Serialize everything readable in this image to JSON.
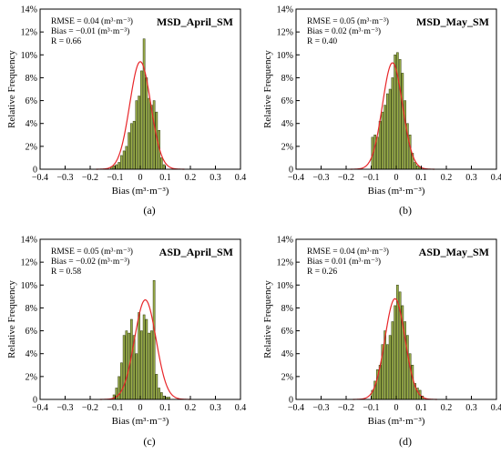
{
  "figure": {
    "style": {
      "bar_fill": "#9aae4a",
      "bar_stroke": "#2f3a0c",
      "curve_color": "#e8262a",
      "axis_color": "#000000"
    }
  },
  "chart_data": [
    {
      "id": "a",
      "type": "bar",
      "title": "MSD_April_SM",
      "caption": "(a)",
      "xlabel": "Bias (m³·m⁻³)",
      "ylabel": "Relative Frequency",
      "xlim": [
        -0.4,
        0.4
      ],
      "ylim": [
        0,
        14
      ],
      "x_ticks": [
        "−0.4",
        "−0.3",
        "−0.2",
        "−0.1",
        "0",
        "0.1",
        "0.2",
        "0.3",
        "0.4"
      ],
      "y_ticks": [
        "0",
        "2%",
        "4%",
        "6%",
        "8%",
        "10%",
        "12%",
        "14%"
      ],
      "grid": false,
      "annotations": [
        "RMSE = 0.04 (m³·m⁻³)",
        "Bias = −0.01 (m³·m⁻³)",
        "R = 0.66"
      ],
      "bins": [
        -0.12,
        -0.11,
        -0.1,
        -0.09,
        -0.08,
        -0.07,
        -0.06,
        -0.05,
        -0.04,
        -0.03,
        -0.02,
        -0.01,
        0.0,
        0.01,
        0.02,
        0.03,
        0.04,
        0.05,
        0.06,
        0.07,
        0.08,
        0.09
      ],
      "values": [
        0.2,
        0.3,
        0.4,
        0.6,
        1.2,
        1.6,
        2.0,
        3.2,
        4.0,
        4.2,
        6.0,
        6.4,
        8.6,
        11.4,
        8.0,
        6.2,
        5.6,
        6.0,
        5.0,
        3.4,
        1.0,
        0.4
      ],
      "fit": {
        "mean": 0.0,
        "sd": 0.042,
        "peak": 9.4
      }
    },
    {
      "id": "b",
      "type": "bar",
      "title": "MSD_May_SM",
      "caption": "(b)",
      "xlabel": "Bias (m³·m⁻³)",
      "ylabel": "Relative Frequency",
      "xlim": [
        -0.4,
        0.4
      ],
      "ylim": [
        0,
        14
      ],
      "x_ticks": [
        "−0.4",
        "−0.3",
        "−0.2",
        "−0.1",
        "0",
        "0.1",
        "0.2",
        "0.3",
        "0.4"
      ],
      "y_ticks": [
        "0",
        "2%",
        "4%",
        "6%",
        "8%",
        "10%",
        "12%",
        "14%"
      ],
      "grid": false,
      "annotations": [
        "RMSE = 0.05 (m³·m⁻³)",
        "Bias = 0.02 (m³·m⁻³)",
        "R = 0.40"
      ],
      "bins": [
        -0.1,
        -0.09,
        -0.08,
        -0.07,
        -0.06,
        -0.05,
        -0.04,
        -0.03,
        -0.02,
        -0.01,
        0.0,
        0.01,
        0.02,
        0.03,
        0.04,
        0.05,
        0.06,
        0.07,
        0.08,
        0.09
      ],
      "values": [
        2.8,
        3.0,
        2.8,
        4.2,
        5.0,
        5.6,
        6.6,
        7.0,
        8.0,
        10.0,
        10.2,
        9.6,
        8.4,
        6.0,
        4.0,
        3.0,
        1.4,
        0.6,
        0.3,
        0.2
      ],
      "fit": {
        "mean": -0.015,
        "sd": 0.04,
        "peak": 9.3
      }
    },
    {
      "id": "c",
      "type": "bar",
      "title": "ASD_April_SM",
      "caption": "(c)",
      "xlabel": "Bias (m³·m⁻³)",
      "ylabel": "Relative Frequency",
      "xlim": [
        -0.4,
        0.4
      ],
      "ylim": [
        0,
        14
      ],
      "x_ticks": [
        "−0.4",
        "−0.3",
        "−0.2",
        "−0.1",
        "0",
        "0.1",
        "0.2",
        "0.3",
        "0.4"
      ],
      "y_ticks": [
        "0",
        "2%",
        "4%",
        "6%",
        "8%",
        "10%",
        "12%",
        "14%"
      ],
      "grid": false,
      "annotations": [
        "RMSE = 0.05 (m³·m⁻³)",
        "Bias = −0.02 (m³·m⁻³)",
        "R = 0.58"
      ],
      "bins": [
        -0.11,
        -0.1,
        -0.09,
        -0.08,
        -0.07,
        -0.06,
        -0.05,
        -0.04,
        -0.03,
        -0.02,
        -0.01,
        0.0,
        0.01,
        0.02,
        0.03,
        0.04,
        0.05,
        0.06,
        0.07,
        0.08,
        0.09,
        0.1,
        0.11
      ],
      "values": [
        0.4,
        1.0,
        2.0,
        3.2,
        5.6,
        6.0,
        5.8,
        7.0,
        5.6,
        4.0,
        7.6,
        6.0,
        7.4,
        7.0,
        5.8,
        6.0,
        10.4,
        2.2,
        1.0,
        0.6,
        0.3,
        0.2,
        0.2
      ],
      "fit": {
        "mean": 0.02,
        "sd": 0.043,
        "peak": 8.7
      }
    },
    {
      "id": "d",
      "type": "bar",
      "title": "ASD_May_SM",
      "caption": "(d)",
      "xlabel": "Bias (m³·m⁻³)",
      "ylabel": "Relative Frequency",
      "xlim": [
        -0.4,
        0.4
      ],
      "ylim": [
        0,
        14
      ],
      "x_ticks": [
        "−0.4",
        "−0.3",
        "−0.2",
        "−0.1",
        "0",
        "0.1",
        "0.2",
        "0.3",
        "0.4"
      ],
      "y_ticks": [
        "0",
        "2%",
        "4%",
        "6%",
        "8%",
        "10%",
        "12%",
        "14%"
      ],
      "grid": false,
      "annotations": [
        "RMSE = 0.04 (m³·m⁻³)",
        "Bias = 0.01 (m³·m⁻³)",
        "R = 0.26"
      ],
      "bins": [
        -0.1,
        -0.09,
        -0.08,
        -0.07,
        -0.06,
        -0.05,
        -0.04,
        -0.03,
        -0.02,
        -0.01,
        0.0,
        0.01,
        0.02,
        0.03,
        0.04,
        0.05,
        0.06,
        0.07,
        0.08,
        0.09,
        0.1
      ],
      "values": [
        0.8,
        1.6,
        2.6,
        3.0,
        4.8,
        6.0,
        4.8,
        5.6,
        6.8,
        8.2,
        10.0,
        9.4,
        8.2,
        6.8,
        5.6,
        4.0,
        3.0,
        1.4,
        1.0,
        0.8,
        0.3
      ],
      "fit": {
        "mean": -0.005,
        "sd": 0.04,
        "peak": 8.8
      }
    }
  ]
}
